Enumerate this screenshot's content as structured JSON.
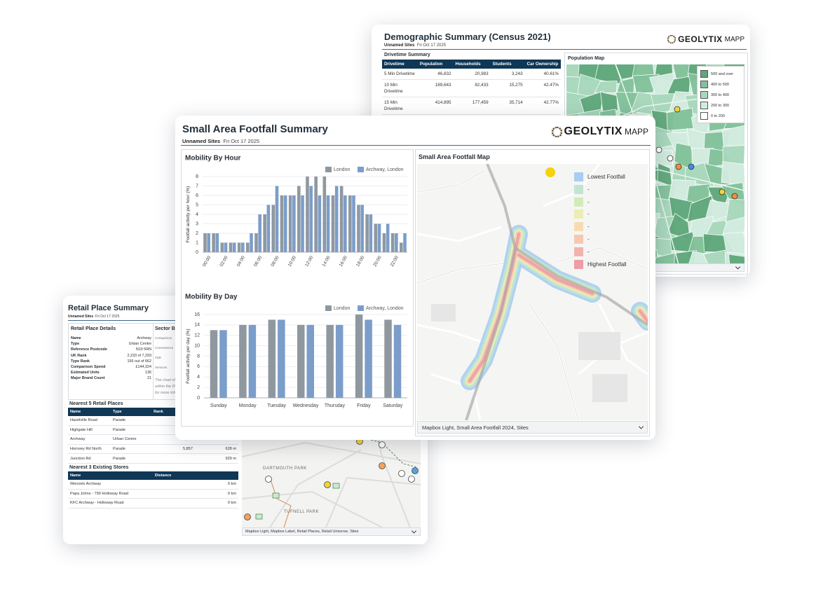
{
  "demographic": {
    "title": "Demographic Summary (Census 2021)",
    "sites": "Unnamed Sites",
    "date": "Fri Oct 17 2025",
    "brand": "GEOLYTIX",
    "product": "MAPP",
    "drivetime": {
      "title": "Drivetime Summary",
      "headers": [
        "Drivetime",
        "Population",
        "Households",
        "Students",
        "Car Ownership"
      ],
      "rows": [
        [
          "5 Min Drivetime",
          "46,832",
          "20,983",
          "3,243",
          "40.61%"
        ],
        [
          "10 Min Drivetime",
          "189,643",
          "82,433",
          "15,275",
          "42.47%"
        ],
        [
          "15 Min Drivetime",
          "414,895",
          "177,459",
          "35,714",
          "42.77%"
        ]
      ]
    },
    "map": {
      "title": "Population Map",
      "legend": [
        {
          "label": "500 and over",
          "color": "#5fa77b"
        },
        {
          "label": "400 to 500",
          "color": "#82c19a"
        },
        {
          "label": "300 to 400",
          "color": "#a8d8bc"
        },
        {
          "label": "200 to 300",
          "color": "#d2ece0"
        },
        {
          "label": "0 to 200",
          "color": "#ffffff"
        }
      ]
    }
  },
  "retail": {
    "title": "Retail Place Summary",
    "sites": "Unnamed Sites",
    "date": "Fri Oct 17 2025",
    "details": {
      "title": "Retail Place Details",
      "rows": [
        [
          "Name",
          "Archway"
        ],
        [
          "Type",
          "Urban Centre"
        ],
        [
          "Reference Postcode",
          "N19 5RN"
        ],
        [
          "UK Rank",
          "2,233 of 7,293"
        ],
        [
          "Type Rank",
          "156 out of 662"
        ],
        [
          "Comparison Spend",
          "£144,324"
        ],
        [
          "Estimated Units",
          "136"
        ],
        [
          "Major Brand Count",
          "21"
        ]
      ]
    },
    "sector": {
      "title": "Sector Br",
      "labels": [
        "Comparison",
        "Convenience",
        "F&B",
        "Services"
      ],
      "note": [
        "The chart sh",
        "within the Re",
        "for more info"
      ]
    },
    "nearest": {
      "title": "Nearest 5 Retail Places",
      "headers": [
        "Name",
        "Type",
        "Rank"
      ],
      "rows": [
        {
          "name": "Hazelville Road",
          "type": "Parade"
        },
        {
          "name": "Highgate Hill",
          "type": "Parade"
        },
        {
          "name": "Archway",
          "type": "Urban Centre",
          "rank": "2,233",
          "distance": "621 m"
        },
        {
          "name": "Hornsey Rd North",
          "type": "Parade",
          "rank": "5,857",
          "distance": "628 m"
        },
        {
          "name": "Junction Rd",
          "type": "Parade",
          "distance": "929 m"
        }
      ]
    },
    "stores": {
      "title": "Nearest 3 Existing Stores",
      "headers": [
        "Name",
        "Distance"
      ],
      "rows": [
        [
          "Wenzels Archway",
          "0 km"
        ],
        [
          "Papa Johns - 790 Holloway Road",
          "0 km"
        ],
        [
          "KFC Archway - Holloway Road",
          "0 km"
        ]
      ]
    },
    "map": {
      "places": [
        "DARTMOUTH PARK",
        "TUFNELL PARK"
      ],
      "footer": "Mapbox Light, Mapbox Label, Retail Places, Retail Universe, Sites"
    }
  },
  "footfall": {
    "title": "Small Area Footfall Summary",
    "sites": "Unnamed Sites",
    "date": "Fri Oct 17 2025",
    "brand": "GEOLYTIX",
    "product": "MAPP",
    "map": {
      "title": "Small Area Footfall Map",
      "footer": "Mapbox Light, Small Area Footfall 2024, Sites",
      "legend": [
        {
          "label": "Lowest Footfall",
          "color": "#a9cdf1"
        },
        {
          "label": "-",
          "color": "#bfe6d3"
        },
        {
          "label": "-",
          "color": "#d2ebb8"
        },
        {
          "label": "-",
          "color": "#ebedb3"
        },
        {
          "label": "-",
          "color": "#f7dcb3"
        },
        {
          "label": "-",
          "color": "#f6c8b2"
        },
        {
          "label": "-",
          "color": "#f3b3ad"
        },
        {
          "label": "Highest Footfall",
          "color": "#f09ca4"
        }
      ]
    }
  },
  "chart_data": [
    {
      "type": "bar",
      "title": "Mobility By Hour",
      "y_label": "Footfall activity per hour (%)",
      "categories": [
        "00:00",
        null,
        "02:00",
        null,
        "04:00",
        null,
        "06:00",
        null,
        "08:00",
        null,
        "10:00",
        null,
        "12:00",
        null,
        "14:00",
        null,
        "16:00",
        null,
        "18:00",
        null,
        "20:00",
        null,
        "22:00",
        null
      ],
      "series": [
        {
          "name": "London",
          "color": "#8f989f",
          "values": [
            2,
            2,
            1,
            1,
            1,
            1,
            2,
            4,
            5,
            6,
            6,
            7,
            8,
            8,
            8,
            6,
            7,
            6,
            5,
            4,
            3,
            2,
            2,
            1
          ]
        },
        {
          "name": "Archway, London",
          "color": "#7b9dca",
          "values": [
            2,
            2,
            1,
            1,
            1,
            2,
            4,
            5,
            7,
            6,
            6,
            6,
            7,
            6,
            6,
            7,
            6,
            6,
            5,
            4,
            3,
            3,
            2,
            2
          ]
        }
      ],
      "ylim": [
        0,
        8
      ],
      "yticks": [
        0,
        1,
        2,
        3,
        4,
        5,
        6,
        7,
        8
      ],
      "grid": true,
      "legend": "top-right"
    },
    {
      "type": "bar",
      "title": "Mobility By Day",
      "y_label": "Footfall activity per day (%)",
      "categories": [
        "Sunday",
        "Monday",
        "Tuesday",
        "Wednesday",
        "Thursday",
        "Friday",
        "Saturday"
      ],
      "series": [
        {
          "name": "London",
          "color": "#8f989f",
          "values": [
            13,
            14,
            15,
            14,
            14,
            16,
            15
          ]
        },
        {
          "name": "Archway, London",
          "color": "#7b9dca",
          "values": [
            13,
            14,
            15,
            14,
            14,
            15,
            14
          ]
        }
      ],
      "ylim": [
        0,
        16
      ],
      "yticks": [
        0,
        2,
        4,
        6,
        8,
        10,
        12,
        14,
        16
      ],
      "grid": true,
      "legend": "top-right"
    }
  ]
}
